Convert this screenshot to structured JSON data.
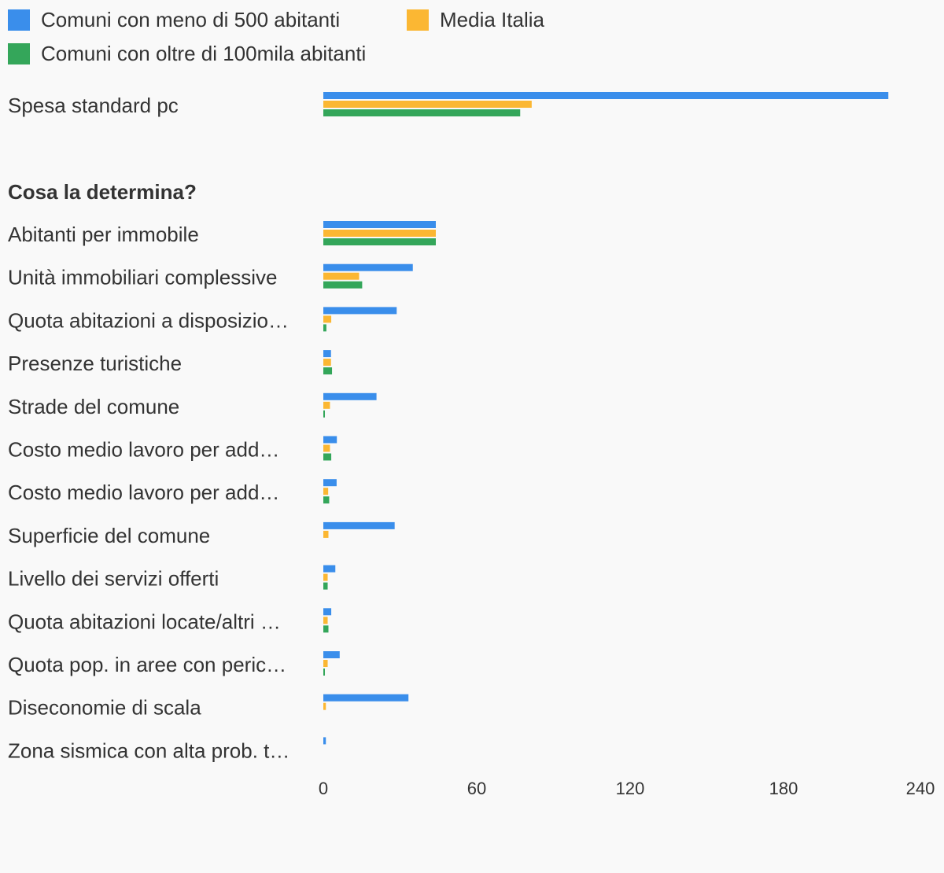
{
  "chart_data": {
    "type": "bar",
    "orientation": "horizontal",
    "section_heading": "Cosa la determina?",
    "categories": [
      "Spesa standard pc",
      "Abitanti per immobile",
      "Unità immobiliari complessive",
      "Quota abitazioni a disposizio…",
      "Presenze turistiche",
      "Strade del comune",
      "Costo medio lavoro per add…",
      "Costo medio lavoro per add…",
      "Superficie del comune",
      "Livello dei servizi offerti",
      "Quota abitazioni locate/altri …",
      "Quota pop. in aree con peric…",
      "Diseconomie di scala",
      "Zona sismica con alta prob. t…"
    ],
    "series": [
      {
        "name": "Comuni con meno di 500 abitanti",
        "color": "#3a8eeb",
        "values": [
          221,
          44,
          35,
          28.7,
          3,
          20.8,
          5.3,
          5.2,
          27.9,
          4.7,
          3.1,
          6.4,
          33.3,
          1
        ]
      },
      {
        "name": "Media Italia",
        "color": "#fbb733",
        "values": [
          81.5,
          44,
          14,
          3.1,
          3,
          2.6,
          2.6,
          1.9,
          2,
          1.7,
          1.7,
          1.7,
          1,
          0
        ]
      },
      {
        "name": "Comuni con oltre di 100mila abitanti",
        "color": "#34a65a",
        "values": [
          77,
          44,
          15.2,
          1.2,
          3.4,
          0.6,
          3.1,
          2.3,
          0,
          1.7,
          2,
          0.6,
          0,
          0
        ]
      }
    ],
    "xlim": [
      0,
      240
    ],
    "xticks": [
      0,
      60,
      120,
      180,
      240
    ],
    "legend_position": "top"
  }
}
